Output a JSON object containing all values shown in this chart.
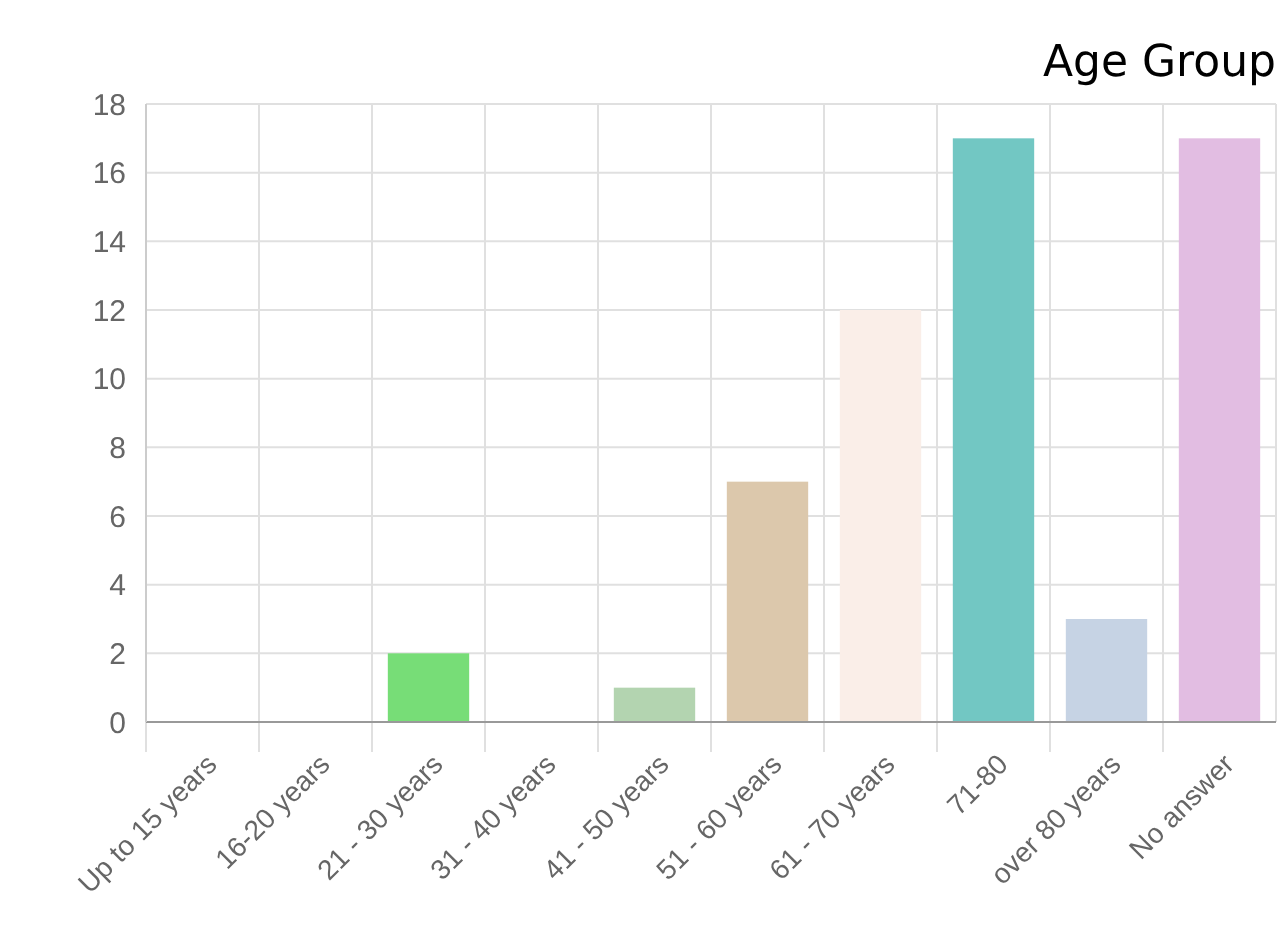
{
  "chart_data": {
    "type": "bar",
    "title": "Age Group",
    "categories": [
      "Up to 15 years",
      "16-20 years",
      "21 - 30 years",
      "31 - 40 years",
      "41 - 50 years",
      "51 - 60 years",
      "61 - 70 years",
      "71-80",
      "over 80 years",
      "No answer"
    ],
    "values": [
      0,
      0,
      2,
      0,
      1,
      7,
      12,
      17,
      3,
      17
    ],
    "colors": [
      "#a9c7e8",
      "#f4b6b6",
      "#77dd77",
      "#f2d48c",
      "#b3d4b0",
      "#dcc8ac",
      "#faeee8",
      "#72c7c3",
      "#c6d3e4",
      "#e2bde2"
    ],
    "ylim": [
      0,
      18
    ],
    "yticks": [
      0,
      2,
      4,
      6,
      8,
      10,
      12,
      14,
      16,
      18
    ],
    "grid": true
  }
}
